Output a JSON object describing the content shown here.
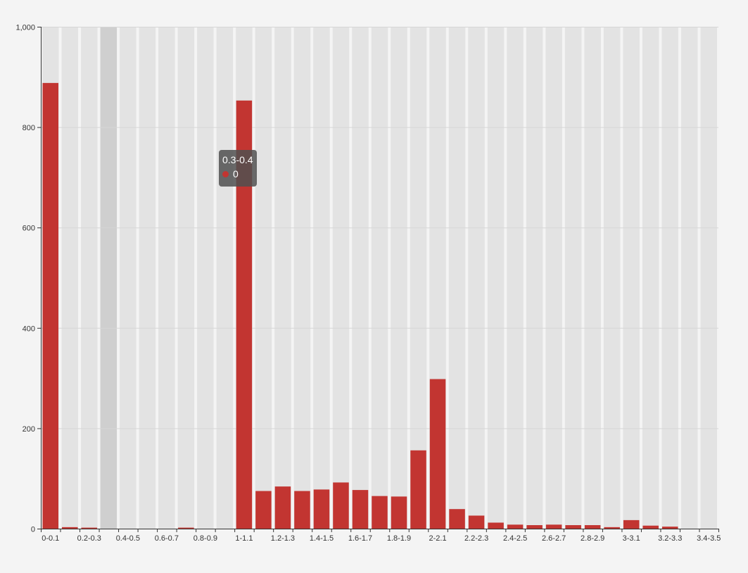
{
  "chart_data": {
    "type": "bar",
    "categories": [
      "0-0.1",
      "0.1-0.2",
      "0.2-0.3",
      "0.3-0.4",
      "0.4-0.5",
      "0.5-0.6",
      "0.6-0.7",
      "0.7-0.8",
      "0.8-0.9",
      "0.9-1",
      "1-1.1",
      "1.1-1.2",
      "1.2-1.3",
      "1.3-1.4",
      "1.4-1.5",
      "1.5-1.6",
      "1.6-1.7",
      "1.7-1.8",
      "1.8-1.9",
      "1.9-2",
      "2-2.1",
      "2.1-2.2",
      "2.2-2.3",
      "2.3-2.4",
      "2.4-2.5",
      "2.5-2.6",
      "2.6-2.7",
      "2.7-2.8",
      "2.8-2.9",
      "2.9-3",
      "3-3.1",
      "3.1-3.2",
      "3.2-3.3",
      "3.3-3.4",
      "3.4-3.5"
    ],
    "x_tick_labels": [
      "0-0.1",
      "0.2-0.3",
      "0.4-0.5",
      "0.6-0.7",
      "0.8-0.9",
      "1-1.1",
      "1.2-1.3",
      "1.4-1.5",
      "1.6-1.7",
      "1.8-1.9",
      "2-2.1",
      "2.2-2.3",
      "2.4-2.5",
      "2.6-2.7",
      "2.8-2.9",
      "3-3.1",
      "3.2-3.3",
      "3.4-3.5"
    ],
    "values": [
      888,
      3,
      2,
      0,
      0,
      0,
      0,
      2,
      0,
      0,
      853,
      75,
      84,
      75,
      78,
      92,
      77,
      65,
      64,
      156,
      298,
      39,
      26,
      12,
      8,
      7,
      8,
      7,
      7,
      3,
      17,
      6,
      4,
      0,
      0
    ],
    "y_tick_labels": [
      "0",
      "200",
      "400",
      "600",
      "800",
      "1,000"
    ],
    "ylim": [
      0,
      1000
    ],
    "grid": true,
    "title": "",
    "xlabel": "",
    "ylabel": "",
    "highlighted_category": "0.3-0.4"
  },
  "tooltip": {
    "category": "0.3-0.4",
    "value": "0"
  },
  "colors": {
    "background": "#f4f4f4",
    "bar": "#c23531",
    "band": "#e3e3e3",
    "band_highlight": "#cfcfcf",
    "axis": "#333333",
    "grid": "#d6d6d6",
    "tick_text": "#333333"
  }
}
